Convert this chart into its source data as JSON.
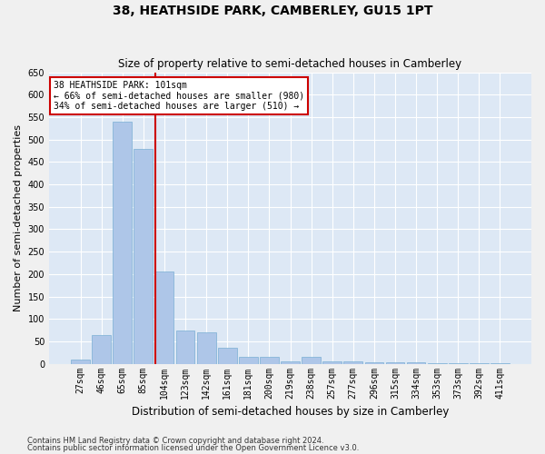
{
  "title": "38, HEATHSIDE PARK, CAMBERLEY, GU15 1PT",
  "subtitle": "Size of property relative to semi-detached houses in Camberley",
  "xlabel": "Distribution of semi-detached houses by size in Camberley",
  "ylabel": "Number of semi-detached properties",
  "footnote1": "Contains HM Land Registry data © Crown copyright and database right 2024.",
  "footnote2": "Contains public sector information licensed under the Open Government Licence v3.0.",
  "annotation_title": "38 HEATHSIDE PARK: 101sqm",
  "annotation_line1": "← 66% of semi-detached houses are smaller (980)",
  "annotation_line2": "34% of semi-detached houses are larger (510) →",
  "categories": [
    "27sqm",
    "46sqm",
    "65sqm",
    "85sqm",
    "104sqm",
    "123sqm",
    "142sqm",
    "161sqm",
    "181sqm",
    "200sqm",
    "219sqm",
    "238sqm",
    "257sqm",
    "277sqm",
    "296sqm",
    "315sqm",
    "334sqm",
    "353sqm",
    "373sqm",
    "392sqm",
    "411sqm"
  ],
  "values": [
    10,
    65,
    540,
    480,
    205,
    75,
    70,
    35,
    15,
    15,
    5,
    15,
    5,
    5,
    3,
    3,
    3,
    2,
    1,
    2,
    2
  ],
  "red_line_bin": 4,
  "bar_color": "#aec6e8",
  "bar_edgecolor": "#7aafd4",
  "red_line_color": "#cc0000",
  "background_color": "#dde8f5",
  "grid_color": "#ffffff",
  "fig_background": "#f0f0f0",
  "annotation_box_edgecolor": "#cc0000",
  "ylim": [
    0,
    650
  ],
  "yticks": [
    0,
    50,
    100,
    150,
    200,
    250,
    300,
    350,
    400,
    450,
    500,
    550,
    600,
    650
  ],
  "title_fontsize": 10,
  "subtitle_fontsize": 8.5,
  "ylabel_fontsize": 8,
  "xlabel_fontsize": 8.5,
  "tick_fontsize": 7,
  "annot_fontsize": 7,
  "footnote_fontsize": 6
}
